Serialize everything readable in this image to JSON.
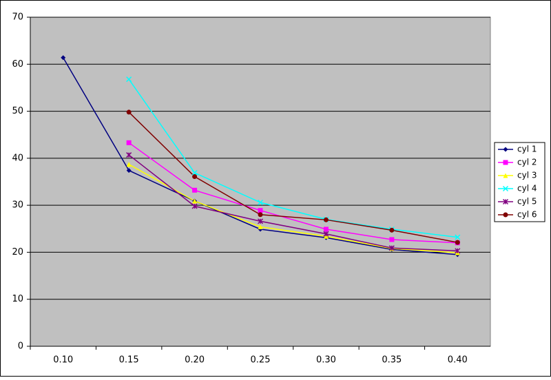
{
  "chart_data": {
    "type": "line",
    "categories": [
      "0.10",
      "0.15",
      "0.20",
      "0.25",
      "0.30",
      "0.35",
      "0.40"
    ],
    "series": [
      {
        "name": "cyl 1",
        "color": "#000080",
        "marker": "diamond",
        "values": [
          61.4,
          37.4,
          30.9,
          24.9,
          23.1,
          20.6,
          19.5
        ]
      },
      {
        "name": "cyl 2",
        "color": "#ff00ff",
        "marker": "square",
        "values": [
          null,
          43.3,
          33.2,
          28.9,
          24.9,
          22.7,
          22.0
        ]
      },
      {
        "name": "cyl 3",
        "color": "#ffff00",
        "marker": "triangle",
        "values": [
          null,
          38.7,
          30.9,
          25.4,
          23.4,
          20.8,
          19.9
        ]
      },
      {
        "name": "cyl 4",
        "color": "#00ffff",
        "marker": "x",
        "values": [
          null,
          56.8,
          36.9,
          30.6,
          27.0,
          24.9,
          23.2
        ]
      },
      {
        "name": "cyl 5",
        "color": "#800080",
        "marker": "star",
        "values": [
          null,
          40.7,
          29.8,
          26.6,
          23.9,
          20.9,
          20.3
        ]
      },
      {
        "name": "cyl 6",
        "color": "#800000",
        "marker": "circle",
        "values": [
          null,
          49.8,
          36.1,
          28.0,
          26.9,
          24.7,
          22.1
        ]
      }
    ],
    "ylim": [
      0,
      70
    ],
    "yticks": [
      0,
      10,
      20,
      30,
      40,
      50,
      60,
      70
    ],
    "grid": true,
    "legend": "right"
  }
}
